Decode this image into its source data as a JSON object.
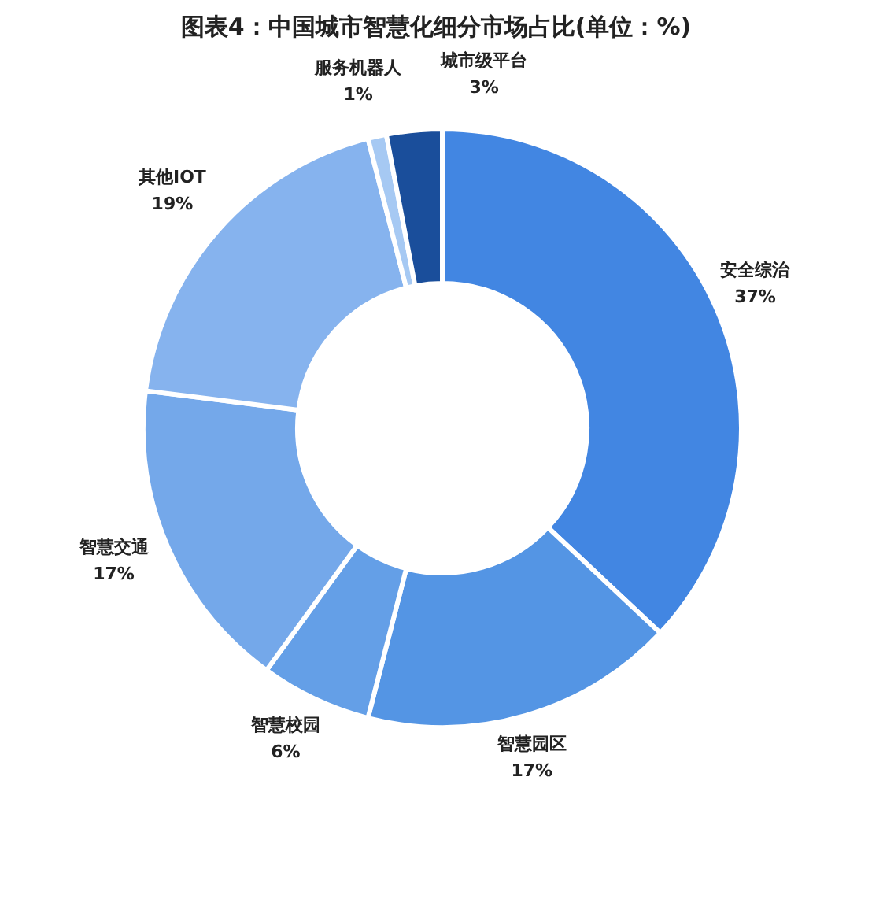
{
  "chart_data": {
    "type": "donut",
    "title": "图表4：中国城市智慧化细分市场占比(单位：%)",
    "categories": [
      "安全综治",
      "智慧园区",
      "智慧校园",
      "智慧交通",
      "其他IOT",
      "服务机器人",
      "城市级平台"
    ],
    "values": [
      37,
      17,
      6,
      17,
      19,
      1,
      3
    ],
    "value_labels": [
      "37%",
      "17%",
      "6%",
      "17%",
      "19%",
      "1%",
      "3%"
    ],
    "colors": [
      "#4286e2",
      "#5495e4",
      "#649fe7",
      "#74a8ea",
      "#86b3ee",
      "#a6c9f3",
      "#1a4e9b"
    ],
    "legend": false
  }
}
